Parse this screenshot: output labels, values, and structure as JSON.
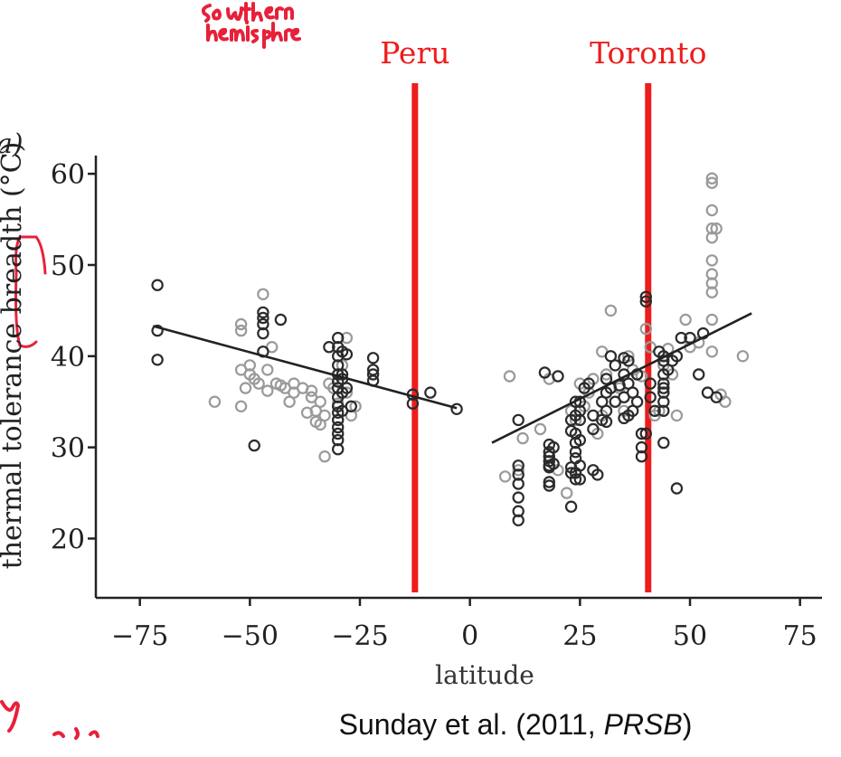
{
  "chart_data": {
    "type": "scatter",
    "panel_label": "a)",
    "xlabel": "latitude",
    "ylabel": "thermal tolerance breadth (°C)",
    "xlim": [
      -85,
      80
    ],
    "ylim": [
      13.5,
      62
    ],
    "xticks": [
      -75,
      -50,
      -25,
      0,
      25,
      50,
      75
    ],
    "xtick_labels": [
      "−75",
      "−50",
      "−25",
      "0",
      "25",
      "50",
      "75"
    ],
    "yticks": [
      20,
      30,
      40,
      50,
      60
    ],
    "ytick_labels": [
      "20",
      "30",
      "40",
      "50",
      "60"
    ],
    "grid": false,
    "series": [
      {
        "color": "#9a9a9a",
        "points": [
          [
            -58,
            35
          ],
          [
            -52,
            43.5
          ],
          [
            -52,
            42.8
          ],
          [
            -52,
            38.5
          ],
          [
            -52,
            34.5
          ],
          [
            -51,
            36.5
          ],
          [
            -50,
            39
          ],
          [
            -50,
            38
          ],
          [
            -49,
            37.5
          ],
          [
            -48,
            37
          ],
          [
            -47,
            46.8
          ],
          [
            -46,
            38.5
          ],
          [
            -46,
            36.2
          ],
          [
            -45,
            41
          ],
          [
            -44,
            37
          ],
          [
            -43,
            36.8
          ],
          [
            -42,
            36.5
          ],
          [
            -41,
            35
          ],
          [
            -40,
            37
          ],
          [
            -40,
            36
          ],
          [
            -38,
            36.5
          ],
          [
            -37,
            33.8
          ],
          [
            -36,
            36.2
          ],
          [
            -36,
            35.5
          ],
          [
            -35,
            34
          ],
          [
            -35,
            32.8
          ],
          [
            -34,
            32.5
          ],
          [
            -34,
            35
          ],
          [
            -33,
            33.5
          ],
          [
            -33,
            29
          ],
          [
            -32,
            37
          ],
          [
            -31,
            36.5
          ],
          [
            -30,
            34.8
          ],
          [
            -30,
            33
          ],
          [
            -29,
            39
          ],
          [
            -28,
            42
          ],
          [
            -28,
            36
          ],
          [
            -27,
            33.5
          ],
          [
            -26,
            34.5
          ],
          [
            8,
            26.8
          ],
          [
            9,
            37.8
          ],
          [
            11,
            27.5
          ],
          [
            12,
            31
          ],
          [
            16,
            32
          ],
          [
            18,
            37.5
          ],
          [
            20,
            27.5
          ],
          [
            22,
            25
          ],
          [
            23,
            34
          ],
          [
            24,
            33
          ],
          [
            25,
            37
          ],
          [
            26,
            34.5
          ],
          [
            27,
            36
          ],
          [
            28,
            37.5
          ],
          [
            29,
            31.5
          ],
          [
            30,
            40.5
          ],
          [
            30,
            33.5
          ],
          [
            31,
            38
          ],
          [
            32,
            45
          ],
          [
            33,
            35
          ],
          [
            34,
            36.5
          ],
          [
            35,
            34
          ],
          [
            36,
            40
          ],
          [
            37,
            38.5
          ],
          [
            38,
            38
          ],
          [
            39,
            37.8
          ],
          [
            40,
            43
          ],
          [
            41,
            41
          ],
          [
            42,
            33.5
          ],
          [
            43,
            34
          ],
          [
            44,
            39
          ],
          [
            45,
            40.8
          ],
          [
            46,
            38
          ],
          [
            47,
            33.5
          ],
          [
            49,
            44
          ],
          [
            50,
            41
          ],
          [
            52,
            41.5
          ],
          [
            54,
            36
          ],
          [
            55,
            40.5
          ],
          [
            55,
            44
          ],
          [
            55,
            47
          ],
          [
            55,
            48
          ],
          [
            55,
            49
          ],
          [
            55,
            50.5
          ],
          [
            55,
            53
          ],
          [
            55,
            54
          ],
          [
            55,
            56
          ],
          [
            55,
            59
          ],
          [
            55,
            59.5
          ],
          [
            56,
            54
          ],
          [
            57,
            35.8
          ],
          [
            58,
            35
          ],
          [
            62,
            40
          ]
        ]
      },
      {
        "color": "#2b2b2b",
        "points": [
          [
            -71,
            47.8
          ],
          [
            -71,
            42.8
          ],
          [
            -71,
            39.6
          ],
          [
            -49,
            30.2
          ],
          [
            -47,
            44.8
          ],
          [
            -47,
            44.2
          ],
          [
            -47,
            43.5
          ],
          [
            -47,
            42.5
          ],
          [
            -47,
            40.5
          ],
          [
            -43,
            44
          ],
          [
            -32,
            41
          ],
          [
            -30,
            42
          ],
          [
            -30,
            41
          ],
          [
            -30,
            40
          ],
          [
            -30,
            39
          ],
          [
            -30,
            38
          ],
          [
            -30,
            37.2
          ],
          [
            -30,
            36.5
          ],
          [
            -30,
            35.5
          ],
          [
            -30,
            34.5
          ],
          [
            -30,
            33.8
          ],
          [
            -30,
            33
          ],
          [
            -30,
            32.2
          ],
          [
            -30,
            31.5
          ],
          [
            -30,
            30.8
          ],
          [
            -30,
            29.8
          ],
          [
            -29,
            40.5
          ],
          [
            -29,
            38
          ],
          [
            -29,
            37.5
          ],
          [
            -29,
            36
          ],
          [
            -29,
            34
          ],
          [
            -28,
            40.2
          ],
          [
            -28,
            36.5
          ],
          [
            -27,
            34.5
          ],
          [
            -22,
            39.8
          ],
          [
            -22,
            38.5
          ],
          [
            -22,
            38
          ],
          [
            -22,
            37.3
          ],
          [
            -13,
            35.8
          ],
          [
            -13,
            34.8
          ],
          [
            -9,
            36
          ],
          [
            -3,
            34.2
          ],
          [
            11,
            33
          ],
          [
            11,
            28
          ],
          [
            11,
            27
          ],
          [
            11,
            26
          ],
          [
            11,
            24.5
          ],
          [
            11,
            23
          ],
          [
            11,
            22
          ],
          [
            17,
            38.2
          ],
          [
            18,
            30.3
          ],
          [
            18,
            29.5
          ],
          [
            18,
            29
          ],
          [
            18,
            28.5
          ],
          [
            18,
            28
          ],
          [
            18,
            27.8
          ],
          [
            18,
            26.2
          ],
          [
            18,
            25.8
          ],
          [
            19,
            30
          ],
          [
            19,
            28.2
          ],
          [
            20,
            37.8
          ],
          [
            23,
            33
          ],
          [
            23,
            31.8
          ],
          [
            23,
            27.8
          ],
          [
            23,
            27.2
          ],
          [
            23,
            23.5
          ],
          [
            24,
            35
          ],
          [
            24,
            33.5
          ],
          [
            24,
            31.5
          ],
          [
            24,
            30.5
          ],
          [
            24,
            29.5
          ],
          [
            24,
            28.8
          ],
          [
            24,
            27.2
          ],
          [
            24,
            26.5
          ],
          [
            25,
            35
          ],
          [
            25,
            34
          ],
          [
            25,
            33
          ],
          [
            25,
            30.8
          ],
          [
            25,
            28
          ],
          [
            25,
            26.5
          ],
          [
            26,
            36.5
          ],
          [
            27,
            37
          ],
          [
            28,
            33.5
          ],
          [
            28,
            32
          ],
          [
            28,
            27.5
          ],
          [
            29,
            27
          ],
          [
            30,
            35
          ],
          [
            30,
            33
          ],
          [
            31,
            37.5
          ],
          [
            31,
            36
          ],
          [
            31,
            34
          ],
          [
            31,
            32.8
          ],
          [
            32,
            40
          ],
          [
            32,
            36.5
          ],
          [
            33,
            39
          ],
          [
            33,
            35
          ],
          [
            34,
            36.8
          ],
          [
            35,
            39.8
          ],
          [
            35,
            38
          ],
          [
            35,
            35.5
          ],
          [
            35,
            33.2
          ],
          [
            36,
            39.5
          ],
          [
            36,
            37
          ],
          [
            36,
            33.5
          ],
          [
            37,
            36
          ],
          [
            37,
            34
          ],
          [
            38,
            38
          ],
          [
            38,
            35
          ],
          [
            39,
            31.5
          ],
          [
            39,
            30
          ],
          [
            39,
            29
          ],
          [
            40,
            46.5
          ],
          [
            40,
            46
          ],
          [
            40,
            31.5
          ],
          [
            41,
            37
          ],
          [
            41,
            35.5
          ],
          [
            42,
            34
          ],
          [
            43,
            40.5
          ],
          [
            44,
            40
          ],
          [
            44,
            39.5
          ],
          [
            44,
            38
          ],
          [
            44,
            37
          ],
          [
            44,
            36.5
          ],
          [
            44,
            36
          ],
          [
            44,
            35
          ],
          [
            44,
            34
          ],
          [
            44,
            30.5
          ],
          [
            45,
            38.5
          ],
          [
            46,
            39.5
          ],
          [
            47,
            40
          ],
          [
            47,
            25.5
          ],
          [
            48,
            42
          ],
          [
            50,
            42
          ],
          [
            52,
            38
          ],
          [
            53,
            42.5
          ],
          [
            54,
            36
          ],
          [
            56,
            35.5
          ]
        ]
      }
    ],
    "fit_lines": [
      {
        "color": "#222222",
        "x": [
          -72,
          -3
        ],
        "y": [
          43.3,
          34.3
        ]
      },
      {
        "color": "#222222",
        "x": [
          5,
          64
        ],
        "y": [
          30.5,
          44.7
        ]
      }
    ],
    "annotations": [
      {
        "text": "Peru",
        "x": -12.5,
        "color": "#ee1c1c"
      },
      {
        "text": "Toronto",
        "x": 40.5,
        "color": "#ee1c1c"
      }
    ]
  },
  "handwriting": {
    "note_lines": [
      "southern",
      "hemisphere"
    ],
    "color": "#e8203a"
  },
  "citation": {
    "prefix": "Sunday et al. (2011, ",
    "journal": "PRSB",
    "suffix": ")"
  }
}
